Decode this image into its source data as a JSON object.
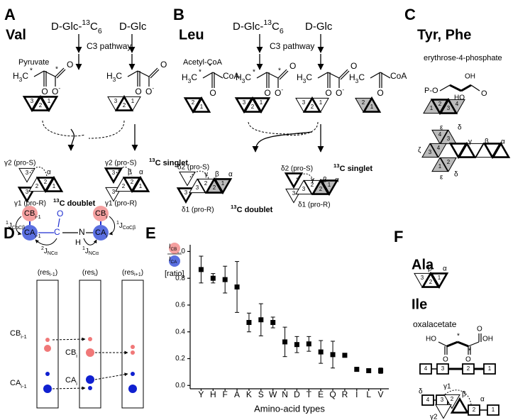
{
  "panels": {
    "A": {
      "letter": "A",
      "title": "Val",
      "labeled_source": [
        "D-Glc-",
        "13",
        "C",
        "6"
      ],
      "source": "D-Glc",
      "pathway": "C3 pathway",
      "precursor": "Pyruvate",
      "left_top": "γ2 (pro-S)",
      "left_alpha": "α",
      "left_bottom": "γ1 (pro-R)",
      "left_result": [
        "13",
        "C doublet"
      ],
      "right_top": "γ2 (pro-S)",
      "right_result": [
        "13",
        "C singlet"
      ],
      "right_beta": "β",
      "right_alpha": "α",
      "right_bottom": "γ1 (pro-R)"
    },
    "B": {
      "letter": "B",
      "title": "Leu",
      "labeled_source": [
        "D-Glc-",
        "13",
        "C",
        "6"
      ],
      "source": "D-Glc",
      "pathway": "C3 pathway",
      "precursor": "Acetyl-CoA",
      "left_top": "δ2 (pro-S)",
      "left_gamma": "γ",
      "left_beta": "β",
      "left_alpha": "α",
      "left_bottom": "δ1 (pro-R)",
      "left_result": [
        "13",
        "C doublet"
      ],
      "right_top": "δ2 (pro-S)",
      "right_result": [
        "13",
        "C singlet"
      ],
      "right_gamma": "γ",
      "right_beta": "β",
      "right_alpha": "α",
      "right_bottom": "δ1 (pro-R)"
    },
    "C": {
      "letter": "C",
      "title": "Tyr, Phe",
      "precursor": "erythrose-4-phosphate",
      "po": "P-O",
      "oh": "OH",
      "ho": "HO",
      "greek": [
        "ε",
        "δ",
        "ζ",
        "γ",
        "β",
        "α",
        "ε",
        "δ"
      ]
    },
    "D": {
      "letter": "D",
      "j_cacb_left": [
        "1",
        "J",
        "CαCβ"
      ],
      "j_nca_2": [
        "2",
        "J",
        "NCα"
      ],
      "j_nca_1": [
        "1",
        "J",
        "NCα"
      ],
      "j_cacb_right": [
        "1",
        "J",
        "CαCβ"
      ],
      "cb_prev": [
        "CB",
        "i-1"
      ],
      "ca_prev": [
        "CA",
        "i-1"
      ],
      "c": "C",
      "o": "O",
      "n": "N",
      "h": "H",
      "cb": [
        "CB",
        "i"
      ],
      "ca": [
        "CA",
        "i"
      ],
      "columns": [
        [
          "(res",
          "i-1",
          ")"
        ],
        [
          "(res",
          "i",
          ")"
        ],
        [
          "(res",
          "i+1",
          ")"
        ]
      ],
      "row_labels": [
        [
          "CB",
          "i-1"
        ],
        [
          "CA",
          "i-1"
        ],
        [
          "CB",
          "i"
        ],
        [
          "CA",
          "i"
        ]
      ]
    },
    "F": {
      "letter": "F",
      "ala": "Ala",
      "ala_labels": [
        "β",
        "α"
      ],
      "ile": "Ile",
      "precursor": "oxalacetate",
      "ho": "HO",
      "oh": "OH",
      "ile_labels": [
        "δ",
        "γ1",
        "β",
        "α",
        "γ2"
      ]
    }
  },
  "atoms": {
    "H": "H",
    "C": "C",
    "O": "O",
    "three": "3",
    "minus": "-",
    "star": "*",
    "CoA": "CoA"
  },
  "numbers": [
    "1",
    "2",
    "3",
    "4"
  ],
  "chart_data": {
    "type": "errorbar",
    "panel": "E",
    "ylabel": {
      "symbol": "I",
      "num": "CB",
      "den": "CA",
      "unit": "[ratio]"
    },
    "xlabel": "Amino-acid types",
    "categories": [
      "Y",
      "H",
      "F",
      "A",
      "K",
      "S",
      "W",
      "N",
      "D",
      "T",
      "E",
      "Q",
      "R",
      "I",
      "L",
      "V"
    ],
    "values": [
      0.865,
      0.8,
      0.79,
      0.735,
      0.47,
      0.49,
      0.47,
      0.325,
      0.305,
      0.31,
      0.25,
      0.23,
      0.225,
      0.12,
      0.11,
      0.11
    ],
    "errors": [
      0.1,
      0.035,
      0.1,
      0.19,
      0.07,
      0.12,
      0.04,
      0.11,
      0.06,
      0.055,
      0.085,
      0.1,
      0.01,
      0.015,
      0.015,
      0.02
    ],
    "color": "#000000",
    "ylim": [
      -0.025,
      1.05
    ],
    "yticks": [
      {
        "value": 0,
        "label": "0.0"
      },
      0.2,
      0.4,
      0.6,
      0.8,
      {
        "value": 1,
        "label": "1.0"
      }
    ]
  }
}
